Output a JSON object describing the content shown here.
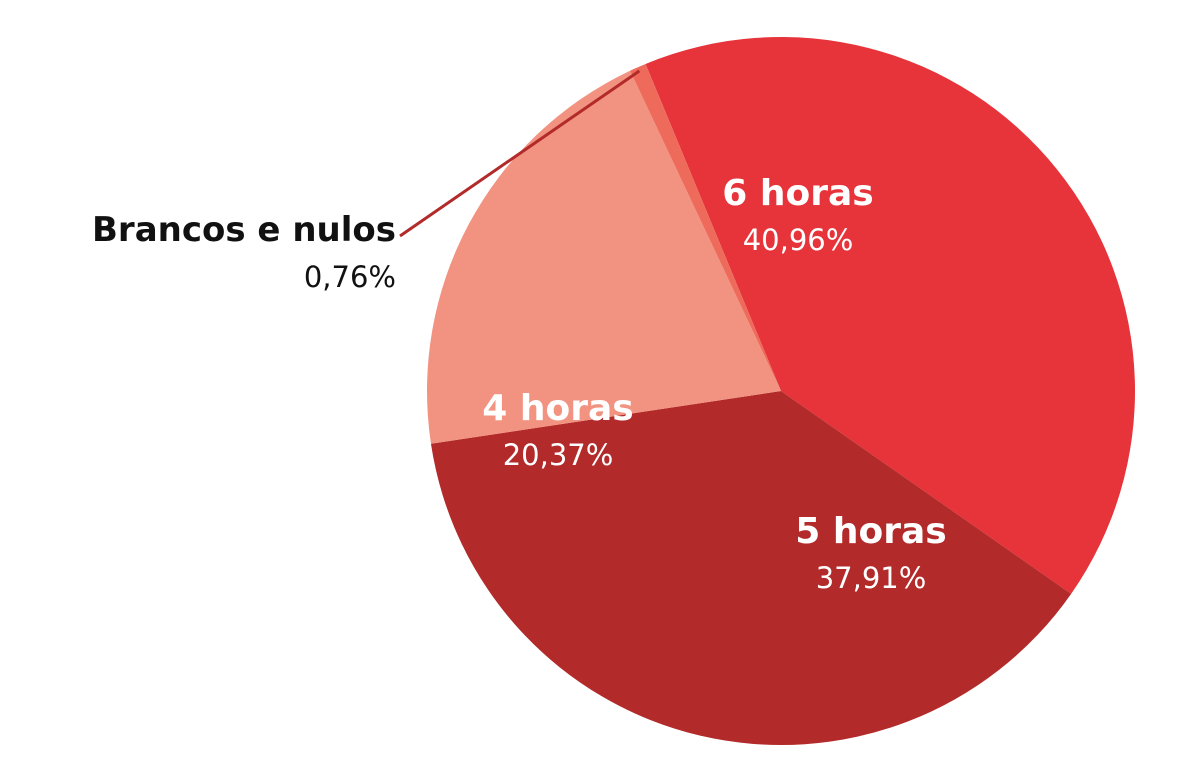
{
  "chart_data": {
    "type": "pie",
    "title": "",
    "slices": [
      {
        "label": "6 horas",
        "value": 40.96,
        "display": "40,96%",
        "color": "#e6343a"
      },
      {
        "label": "5 horas",
        "value": 37.91,
        "display": "37,91%",
        "color": "#b22a29"
      },
      {
        "label": "4 horas",
        "value": 20.37,
        "display": "20,37%",
        "color": "#f29381"
      },
      {
        "label": "Brancos e nulos",
        "value": 0.76,
        "display": "0,76%",
        "color": "#ee6b5c"
      }
    ],
    "leader_line_color": "#b22a29"
  }
}
